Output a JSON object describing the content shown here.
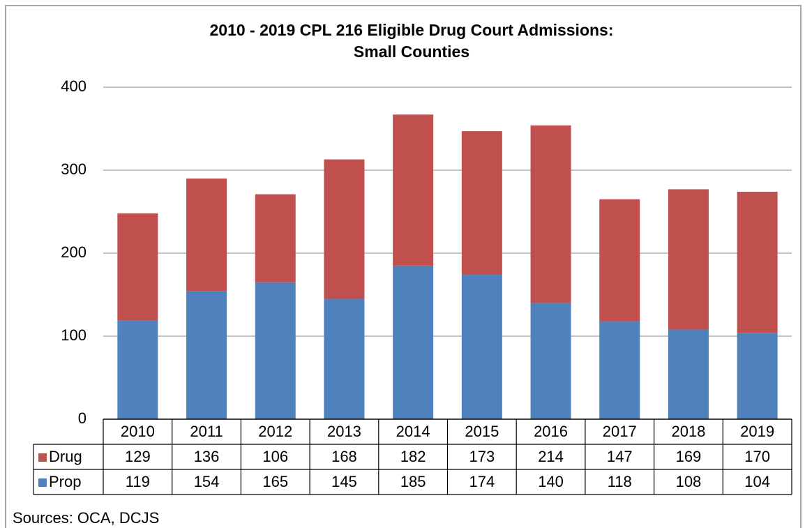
{
  "chart_data": {
    "type": "bar",
    "stacked": true,
    "title": [
      "2010 - 2019 CPL 216 Eligible Drug Court Admissions:",
      "Small Counties"
    ],
    "categories": [
      "2010",
      "2011",
      "2012",
      "2013",
      "2014",
      "2015",
      "2016",
      "2017",
      "2018",
      "2019"
    ],
    "series": [
      {
        "name": "Drug",
        "color": "#c0504d",
        "values": [
          129,
          136,
          106,
          168,
          182,
          173,
          214,
          147,
          169,
          170
        ]
      },
      {
        "name": "Prop",
        "color": "#4f81bd",
        "values": [
          119,
          154,
          165,
          145,
          185,
          174,
          140,
          118,
          108,
          104
        ]
      }
    ],
    "ylim": [
      0,
      400
    ],
    "yticks": [
      0,
      100,
      200,
      300,
      400
    ],
    "grid": true,
    "source": "Sources: OCA, DCJS"
  }
}
